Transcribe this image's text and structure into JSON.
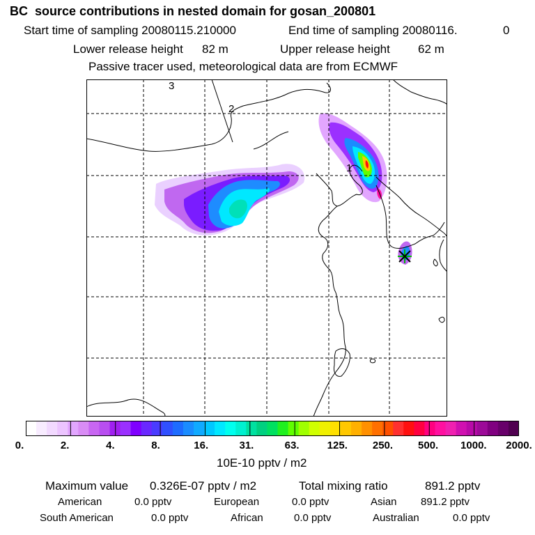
{
  "header": {
    "title": "BC  source contributions in nested domain for gosan_200801",
    "start_label": "Start time of sampling 20080115.210000",
    "end_label": "End time of sampling 20080116.",
    "end_suffix": "0",
    "lower_label": "Lower release height",
    "lower_value": "82 m",
    "upper_label": "Upper release height",
    "upper_value": "62 m",
    "note": "Passive tracer used, meteorological data are from ECMWF"
  },
  "map": {
    "grid_labels": [
      "3",
      "2",
      "1"
    ],
    "colors": {
      "frame": "#000000",
      "coast": "#000000",
      "grid": "#000000",
      "receptor_marker": "#00bb00"
    }
  },
  "colorbar": {
    "ticks": [
      "0.",
      "2.",
      "4.",
      "8.",
      "16.",
      "31.",
      "63.",
      "125.",
      "250.",
      "500.",
      "1000.",
      "2000."
    ],
    "unit": "10E-10 pptv / m2",
    "colors": [
      "#ffffff",
      "#f8ecff",
      "#f2d9ff",
      "#ecc4ff",
      "#e2a6ff",
      "#d98cf5",
      "#c866f2",
      "#b84ef0",
      "#a020f0",
      "#9b30ff",
      "#7f00ff",
      "#6a28ff",
      "#4a3cff",
      "#3050ff",
      "#1e6cff",
      "#1a8cff",
      "#10aaff",
      "#00c8ff",
      "#00e8ff",
      "#00ffee",
      "#00f0d0",
      "#00e0a0",
      "#00d080",
      "#00e060",
      "#20f020",
      "#60ff00",
      "#a0ff00",
      "#d0ff00",
      "#f0f000",
      "#ffe000",
      "#ffc800",
      "#ffb000",
      "#ff9000",
      "#ff7000",
      "#ff5000",
      "#ff3030",
      "#ff1010",
      "#ff0040",
      "#ff0080",
      "#ff10a0",
      "#f020b0",
      "#d010b0",
      "#b80aa8",
      "#9c0a98",
      "#800080",
      "#68006a",
      "#500050"
    ]
  },
  "stats": {
    "max_label": "Maximum value",
    "max_value": "0.326E-07 pptv / m2",
    "total_label": "Total mixing ratio",
    "total_value": "891.2 pptv",
    "regions": [
      {
        "name": "American",
        "value": "0.0 pptv"
      },
      {
        "name": "European",
        "value": "0.0 pptv"
      },
      {
        "name": "Asian",
        "value": "891.2 pptv"
      },
      {
        "name": "South American",
        "value": "0.0 pptv"
      },
      {
        "name": "African",
        "value": "0.0 pptv"
      },
      {
        "name": "Australian",
        "value": "0.0 pptv"
      }
    ]
  }
}
